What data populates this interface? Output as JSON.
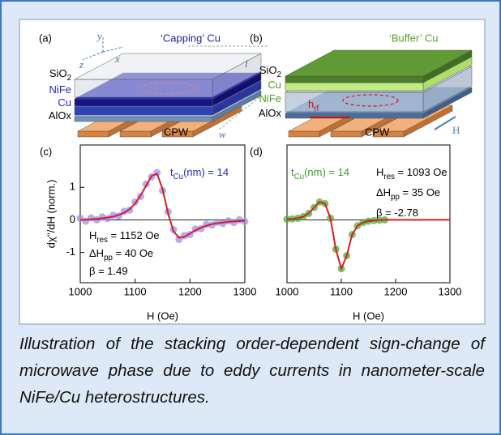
{
  "diagram_a": {
    "label": "(a)",
    "title": "‘Capping’ Cu",
    "layers": [
      [
        {
          "text": "SiO"
        },
        {
          "text": "2",
          "sub": true
        }
      ],
      [
        {
          "text": "NiFe"
        }
      ],
      [
        {
          "text": "Cu"
        }
      ],
      [
        {
          "text": "AlOx"
        }
      ]
    ],
    "axes": [
      "y",
      "z",
      "x"
    ],
    "dimensions": [
      "l",
      "w"
    ],
    "waveguide": "CPW"
  },
  "diagram_b": {
    "label": "(b)",
    "title": "‘Buffer’ Cu",
    "layers": [
      [
        {
          "text": "SiO"
        },
        {
          "text": "2",
          "sub": true
        }
      ],
      [
        {
          "text": "Cu"
        }
      ],
      [
        {
          "text": "NiFe"
        }
      ],
      [
        {
          "text": "AlOx"
        }
      ]
    ],
    "field": [
      {
        "text": "h"
      },
      {
        "text": "rf",
        "sub": true
      }
    ],
    "waveguide": "CPW",
    "bias": "H"
  },
  "chart_data": [
    {
      "type": "line",
      "label": "(c)",
      "xlabel": "H (Oe)",
      "ylabel": "dχ''/dH (norm.)",
      "x": [
        1000,
        1010,
        1020,
        1030,
        1040,
        1050,
        1060,
        1070,
        1080,
        1090,
        1100,
        1110,
        1120,
        1130,
        1140,
        1150,
        1160,
        1170,
        1180,
        1190,
        1200,
        1210,
        1220,
        1230,
        1240,
        1250,
        1260,
        1270,
        1280,
        1290,
        1300
      ],
      "xlim": [
        1000,
        1300
      ],
      "xticks": [
        1000,
        1100,
        1200,
        1300
      ],
      "ylim": [
        -1.93,
        2.3
      ],
      "yticks": [
        -1,
        0,
        1
      ],
      "zero_line": true,
      "series": [
        {
          "color": "#9d8ef2",
          "marker": true,
          "values": [
            0.05,
            -0.04,
            0.06,
            0.0,
            0.09,
            0.04,
            0.14,
            0.12,
            0.26,
            0.3,
            0.55,
            0.72,
            1.1,
            1.32,
            1.45,
            0.9,
            0.25,
            -0.3,
            -0.6,
            -0.48,
            -0.45,
            -0.28,
            -0.27,
            -0.14,
            -0.16,
            -0.07,
            -0.11,
            -0.03,
            -0.08,
            0.0,
            -0.05
          ]
        },
        {
          "color": "#d42020",
          "values": [
            0,
            0,
            0.02,
            0.03,
            0.05,
            0.07,
            0.1,
            0.15,
            0.22,
            0.33,
            0.5,
            0.75,
            1.05,
            1.35,
            1.42,
            0.95,
            0.2,
            -0.35,
            -0.55,
            -0.52,
            -0.42,
            -0.32,
            -0.24,
            -0.18,
            -0.13,
            -0.1,
            -0.08,
            -0.06,
            -0.05,
            -0.04,
            -0.03
          ]
        }
      ],
      "annotations": [
        {
          "color": "#2626c0",
          "parts": [
            {
              "text": "t"
            },
            {
              "text": "Cu",
              "sub": true
            },
            {
              "text": "(nm) = 14"
            }
          ]
        },
        {
          "color": "#000000",
          "parts": [
            {
              "text": "H"
            },
            {
              "text": "res",
              "sub": true
            },
            {
              "text": " = 1152 Oe"
            }
          ]
        },
        {
          "color": "#000000",
          "parts": [
            {
              "text": "ΔH"
            },
            {
              "text": "pp",
              "sub": true
            },
            {
              "text": " = 40 Oe"
            }
          ]
        },
        {
          "color": "#000000",
          "parts": [
            {
              "text": "β = 1.49"
            }
          ]
        }
      ]
    },
    {
      "type": "line",
      "label": "(d)",
      "xlabel": "H (Oe)",
      "x": [
        1000,
        1010,
        1020,
        1030,
        1040,
        1050,
        1060,
        1070,
        1080,
        1090,
        1100,
        1110,
        1120,
        1130,
        1140,
        1150,
        1160,
        1170,
        1180,
        1190,
        1200,
        1210,
        1220,
        1230,
        1240,
        1250,
        1260,
        1270,
        1280,
        1290,
        1300
      ],
      "xlim": [
        1000,
        1300
      ],
      "xticks": [
        1000,
        1100,
        1200,
        1300
      ],
      "ylim": [
        -1.93,
        2.3
      ],
      "zero_line": true,
      "series": [
        {
          "color": "#4caf3a",
          "marker": true,
          "values": [
            0.02,
            0.03,
            0.05,
            0.1,
            0.2,
            0.38,
            0.55,
            0.5,
            0.05,
            -0.9,
            -1.5,
            -1.1,
            -0.45,
            -0.18,
            -0.08,
            -0.04,
            -0.02,
            -0.01,
            0.0,
            null,
            null,
            null,
            null,
            null,
            null,
            null,
            null,
            null,
            null,
            null,
            null
          ]
        },
        {
          "color": "#d42020",
          "values": [
            0.02,
            0.03,
            0.05,
            0.1,
            0.2,
            0.38,
            0.55,
            0.5,
            0.05,
            -0.9,
            -1.5,
            -1.1,
            -0.45,
            -0.18,
            -0.08,
            -0.04,
            -0.02,
            -0.01,
            0,
            0,
            0,
            0,
            0,
            0,
            0,
            0,
            0,
            0,
            0,
            0,
            0
          ]
        }
      ],
      "annotations": [
        {
          "color": "#3f9a2a",
          "parts": [
            {
              "text": "t"
            },
            {
              "text": "Cu",
              "sub": true
            },
            {
              "text": "(nm) = 14"
            }
          ]
        },
        {
          "color": "#000000",
          "parts": [
            {
              "text": "H"
            },
            {
              "text": "res",
              "sub": true
            },
            {
              "text": " = 1093 Oe"
            }
          ]
        },
        {
          "color": "#000000",
          "parts": [
            {
              "text": "ΔH"
            },
            {
              "text": "pp",
              "sub": true
            },
            {
              "text": " = 35 Oe"
            }
          ]
        },
        {
          "color": "#000000",
          "parts": [
            {
              "text": "β = -2.78"
            }
          ]
        }
      ]
    }
  ],
  "caption": "Illustration of the stacking order-dependent sign-change of microwave phase due to eddy currents in nanometer-scale NiFe/Cu heterostructures."
}
